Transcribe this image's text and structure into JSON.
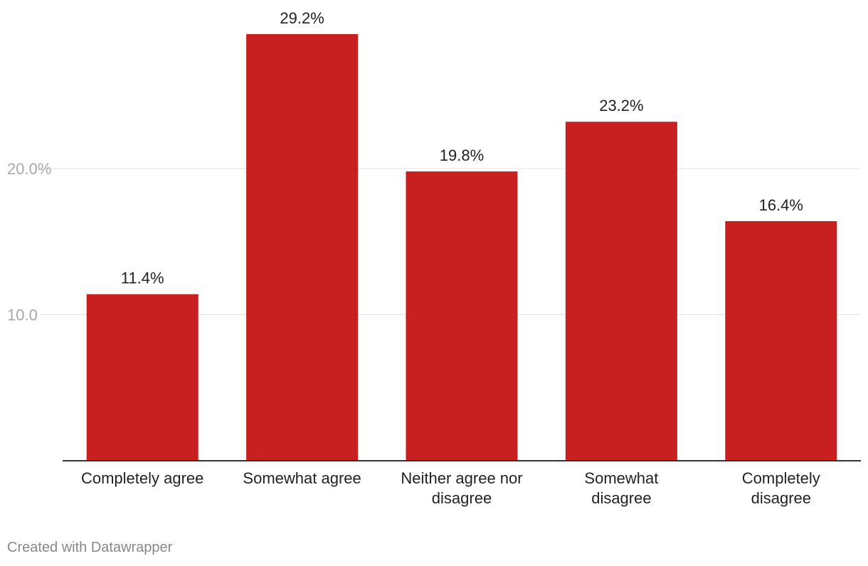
{
  "chart_data": {
    "type": "bar",
    "categories": [
      [
        "Completely agree"
      ],
      [
        "Somewhat agree"
      ],
      [
        "Neither agree nor",
        "disagree"
      ],
      [
        "Somewhat",
        "disagree"
      ],
      [
        "Completely",
        "disagree"
      ]
    ],
    "values": [
      11.4,
      29.2,
      19.8,
      23.2,
      16.4
    ],
    "value_labels": [
      "11.4%",
      "29.2%",
      "19.8%",
      "23.2%",
      "16.4%"
    ],
    "y_ticks": [
      {
        "value": 20,
        "label": "20.0%"
      },
      {
        "value": 10,
        "label": "10.0"
      }
    ],
    "ylim": [
      0,
      31.5
    ],
    "grid": true,
    "bar_color": "#c82020",
    "title": "",
    "xlabel": "",
    "ylabel": ""
  },
  "footer": {
    "credit": "Created with Datawrapper"
  }
}
